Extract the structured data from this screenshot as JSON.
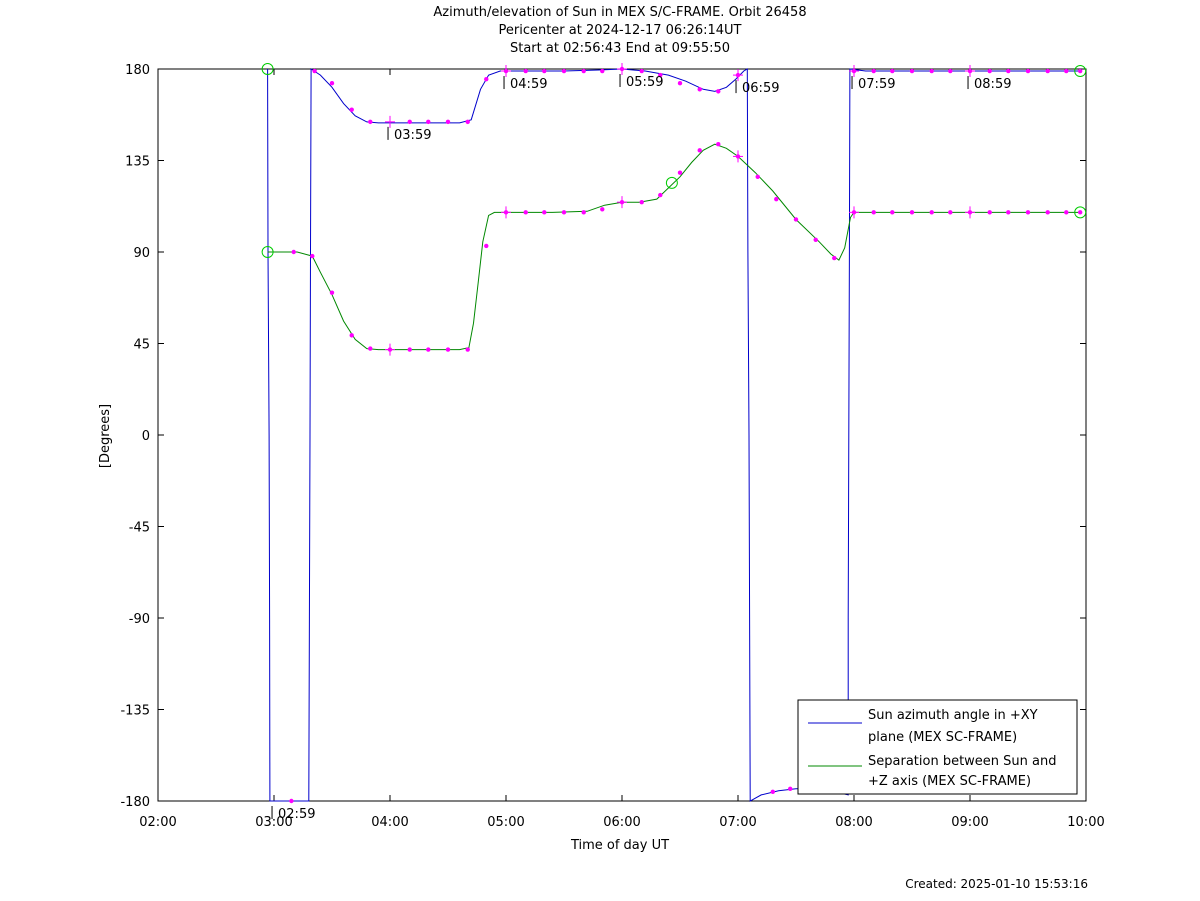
{
  "chart_data": {
    "type": "line",
    "title": "Azimuth/elevation of Sun in MEX S/C-FRAME.  Orbit 26458",
    "subtitle_1": "Pericenter at 2024-12-17 06:26:14UT",
    "subtitle_2": "Start at 02:56:43 End at 09:55:50",
    "xlabel": "Time of day UT",
    "ylabel": "[Degrees]",
    "xlim_hours": [
      2.0,
      10.0
    ],
    "ylim": [
      -180,
      180
    ],
    "x_ticks": [
      {
        "h": 2,
        "label": "02:00"
      },
      {
        "h": 3,
        "label": "03:00"
      },
      {
        "h": 4,
        "label": "04:00"
      },
      {
        "h": 5,
        "label": "05:00"
      },
      {
        "h": 6,
        "label": "06:00"
      },
      {
        "h": 7,
        "label": "07:00"
      },
      {
        "h": 8,
        "label": "08:00"
      },
      {
        "h": 9,
        "label": "09:00"
      },
      {
        "h": 10,
        "label": "10:00"
      }
    ],
    "y_ticks": [
      {
        "v": 180,
        "label": "180"
      },
      {
        "v": 135,
        "label": "135"
      },
      {
        "v": 90,
        "label": "90"
      },
      {
        "v": 45,
        "label": "45"
      },
      {
        "v": 0,
        "label": "0"
      },
      {
        "v": -45,
        "label": "-45"
      },
      {
        "v": -90,
        "label": "-90"
      },
      {
        "v": -135,
        "label": "-135"
      },
      {
        "v": -180,
        "label": "-180"
      }
    ],
    "grid": false,
    "legend_position": "bottom-right",
    "series": [
      {
        "name_line1": "Sun azimuth angle in +XY",
        "name_line2": "plane (MEX SC-FRAME)",
        "color": "#0000cc",
        "points": [
          [
            2.945,
            180
          ],
          [
            2.948,
            90
          ],
          [
            2.958,
            0
          ],
          [
            2.962,
            -90
          ],
          [
            2.965,
            -180
          ],
          [
            3.3,
            -180
          ],
          [
            3.305,
            -90
          ],
          [
            3.31,
            0
          ],
          [
            3.315,
            90
          ],
          [
            3.32,
            180
          ],
          [
            3.4,
            177
          ],
          [
            3.5,
            171
          ],
          [
            3.6,
            163
          ],
          [
            3.7,
            157
          ],
          [
            3.8,
            154
          ],
          [
            3.9,
            153.5
          ],
          [
            4.0,
            153.5
          ],
          [
            4.2,
            153.5
          ],
          [
            4.4,
            153.5
          ],
          [
            4.6,
            153.5
          ],
          [
            4.7,
            155
          ],
          [
            4.78,
            170
          ],
          [
            4.85,
            177
          ],
          [
            4.95,
            179
          ],
          [
            5.1,
            179
          ],
          [
            5.5,
            179
          ],
          [
            5.8,
            179.5
          ],
          [
            6.0,
            180
          ],
          [
            6.2,
            179
          ],
          [
            6.4,
            177
          ],
          [
            6.55,
            174
          ],
          [
            6.7,
            170
          ],
          [
            6.8,
            169
          ],
          [
            6.9,
            171
          ],
          [
            6.98,
            175
          ],
          [
            7.05,
            179
          ],
          [
            7.08,
            180
          ],
          [
            7.085,
            90
          ],
          [
            7.095,
            0
          ],
          [
            7.1,
            -90
          ],
          [
            7.105,
            -180
          ],
          [
            7.2,
            -177
          ],
          [
            7.35,
            -175
          ],
          [
            7.5,
            -174
          ],
          [
            7.65,
            -174
          ],
          [
            7.8,
            -175
          ],
          [
            7.95,
            -177
          ],
          [
            7.95,
            -90
          ],
          [
            7.955,
            0
          ],
          [
            7.96,
            90
          ],
          [
            7.965,
            180
          ],
          [
            8.1,
            179
          ],
          [
            8.5,
            179
          ],
          [
            9.0,
            179
          ],
          [
            9.5,
            179
          ],
          [
            9.95,
            179
          ]
        ]
      },
      {
        "name_line1": "Separation between Sun and",
        "name_line2": "+Z axis (MEX SC-FRAME)",
        "color": "#008800",
        "points": [
          [
            2.945,
            90
          ],
          [
            3.0,
            90
          ],
          [
            3.2,
            90
          ],
          [
            3.33,
            88
          ],
          [
            3.4,
            80
          ],
          [
            3.5,
            69
          ],
          [
            3.6,
            56
          ],
          [
            3.7,
            47
          ],
          [
            3.8,
            42.5
          ],
          [
            3.9,
            42
          ],
          [
            4.0,
            42
          ],
          [
            4.3,
            42
          ],
          [
            4.6,
            42
          ],
          [
            4.68,
            43
          ],
          [
            4.72,
            55
          ],
          [
            4.76,
            75
          ],
          [
            4.8,
            95
          ],
          [
            4.85,
            108
          ],
          [
            4.9,
            109.5
          ],
          [
            5.0,
            109.5
          ],
          [
            5.4,
            109.5
          ],
          [
            5.7,
            110
          ],
          [
            5.85,
            113
          ],
          [
            6.0,
            114.5
          ],
          [
            6.15,
            114.5
          ],
          [
            6.3,
            116
          ],
          [
            6.5,
            127
          ],
          [
            6.6,
            134
          ],
          [
            6.7,
            140
          ],
          [
            6.8,
            143
          ],
          [
            6.9,
            141
          ],
          [
            7.0,
            137
          ],
          [
            7.15,
            129
          ],
          [
            7.3,
            120
          ],
          [
            7.5,
            106
          ],
          [
            7.7,
            95
          ],
          [
            7.8,
            89
          ],
          [
            7.87,
            86
          ],
          [
            7.92,
            92
          ],
          [
            7.97,
            107
          ],
          [
            8.0,
            109.5
          ],
          [
            8.5,
            109.5
          ],
          [
            9.0,
            109.5
          ],
          [
            9.5,
            109.5
          ],
          [
            9.95,
            109.5
          ]
        ]
      }
    ],
    "marker_points": [
      [
        3.15,
        -180
      ],
      [
        3.35,
        179
      ],
      [
        3.5,
        173
      ],
      [
        3.67,
        160
      ],
      [
        3.83,
        154
      ],
      [
        4.17,
        154
      ],
      [
        4.33,
        154
      ],
      [
        4.5,
        154
      ],
      [
        4.67,
        154
      ],
      [
        4.83,
        175
      ],
      [
        5.0,
        179
      ],
      [
        5.17,
        179
      ],
      [
        5.33,
        179
      ],
      [
        5.5,
        179
      ],
      [
        5.67,
        179
      ],
      [
        5.83,
        179
      ],
      [
        6.0,
        180
      ],
      [
        6.17,
        179
      ],
      [
        6.33,
        177
      ],
      [
        6.5,
        173
      ],
      [
        6.67,
        170
      ],
      [
        6.83,
        169
      ],
      [
        7.0,
        177
      ],
      [
        7.3,
        -175.5
      ],
      [
        7.45,
        -174
      ],
      [
        7.62,
        -174
      ],
      [
        7.78,
        -175
      ],
      [
        8.0,
        179
      ],
      [
        8.17,
        179
      ],
      [
        8.33,
        179
      ],
      [
        8.5,
        179
      ],
      [
        8.67,
        179
      ],
      [
        8.83,
        179
      ],
      [
        9.0,
        179
      ],
      [
        9.17,
        179
      ],
      [
        9.33,
        179
      ],
      [
        9.5,
        179
      ],
      [
        9.67,
        179
      ],
      [
        9.83,
        179
      ],
      [
        9.95,
        179
      ],
      [
        3.17,
        90
      ],
      [
        3.33,
        88
      ],
      [
        3.5,
        70
      ],
      [
        3.67,
        49
      ],
      [
        3.83,
        42.5
      ],
      [
        4.0,
        42
      ],
      [
        4.17,
        42
      ],
      [
        4.33,
        42
      ],
      [
        4.5,
        42
      ],
      [
        4.67,
        42
      ],
      [
        4.83,
        93
      ],
      [
        5.0,
        109.5
      ],
      [
        5.17,
        109.5
      ],
      [
        5.33,
        109.5
      ],
      [
        5.5,
        109.5
      ],
      [
        5.67,
        109.5
      ],
      [
        5.83,
        111
      ],
      [
        6.0,
        114.5
      ],
      [
        6.17,
        114.5
      ],
      [
        6.33,
        118
      ],
      [
        6.5,
        129
      ],
      [
        6.67,
        140
      ],
      [
        6.83,
        143
      ],
      [
        7.0,
        137
      ],
      [
        7.17,
        127
      ],
      [
        7.33,
        116
      ],
      [
        7.5,
        106
      ],
      [
        7.67,
        96
      ],
      [
        7.83,
        87
      ],
      [
        8.0,
        109.5
      ],
      [
        8.17,
        109.5
      ],
      [
        8.33,
        109.5
      ],
      [
        8.5,
        109.5
      ],
      [
        8.67,
        109.5
      ],
      [
        8.83,
        109.5
      ],
      [
        9.0,
        109.5
      ],
      [
        9.17,
        109.5
      ],
      [
        9.33,
        109.5
      ],
      [
        9.5,
        109.5
      ],
      [
        9.67,
        109.5
      ],
      [
        9.83,
        109.5
      ],
      [
        9.95,
        109.5
      ]
    ],
    "cross_markers": [
      [
        4.0,
        154
      ],
      [
        5.0,
        179
      ],
      [
        6.0,
        180
      ],
      [
        7.0,
        177
      ],
      [
        8.0,
        179
      ],
      [
        9.0,
        179
      ],
      [
        4.0,
        42
      ],
      [
        5.0,
        109.5
      ],
      [
        6.0,
        114.5
      ],
      [
        7.0,
        137
      ],
      [
        8.0,
        109.5
      ],
      [
        9.0,
        109.5
      ]
    ],
    "circle_markers": [
      [
        2.945,
        180
      ],
      [
        2.945,
        90
      ],
      [
        6.43,
        124
      ],
      [
        9.95,
        179
      ],
      [
        9.95,
        109.5
      ]
    ],
    "time_annotations": [
      {
        "h": 2.983,
        "v": -180,
        "label": "02:59"
      },
      {
        "h": 3.983,
        "v": 154,
        "label": "03:59"
      },
      {
        "h": 4.983,
        "v": 179,
        "label": "04:59"
      },
      {
        "h": 5.983,
        "v": 180,
        "label": "05:59"
      },
      {
        "h": 6.983,
        "v": 177,
        "label": "06:59"
      },
      {
        "h": 7.983,
        "v": 179,
        "label": "07:59"
      },
      {
        "h": 8.983,
        "v": 179,
        "label": "08:59"
      }
    ]
  },
  "footer": {
    "created": "Created: 2025-01-10 15:53:16"
  }
}
